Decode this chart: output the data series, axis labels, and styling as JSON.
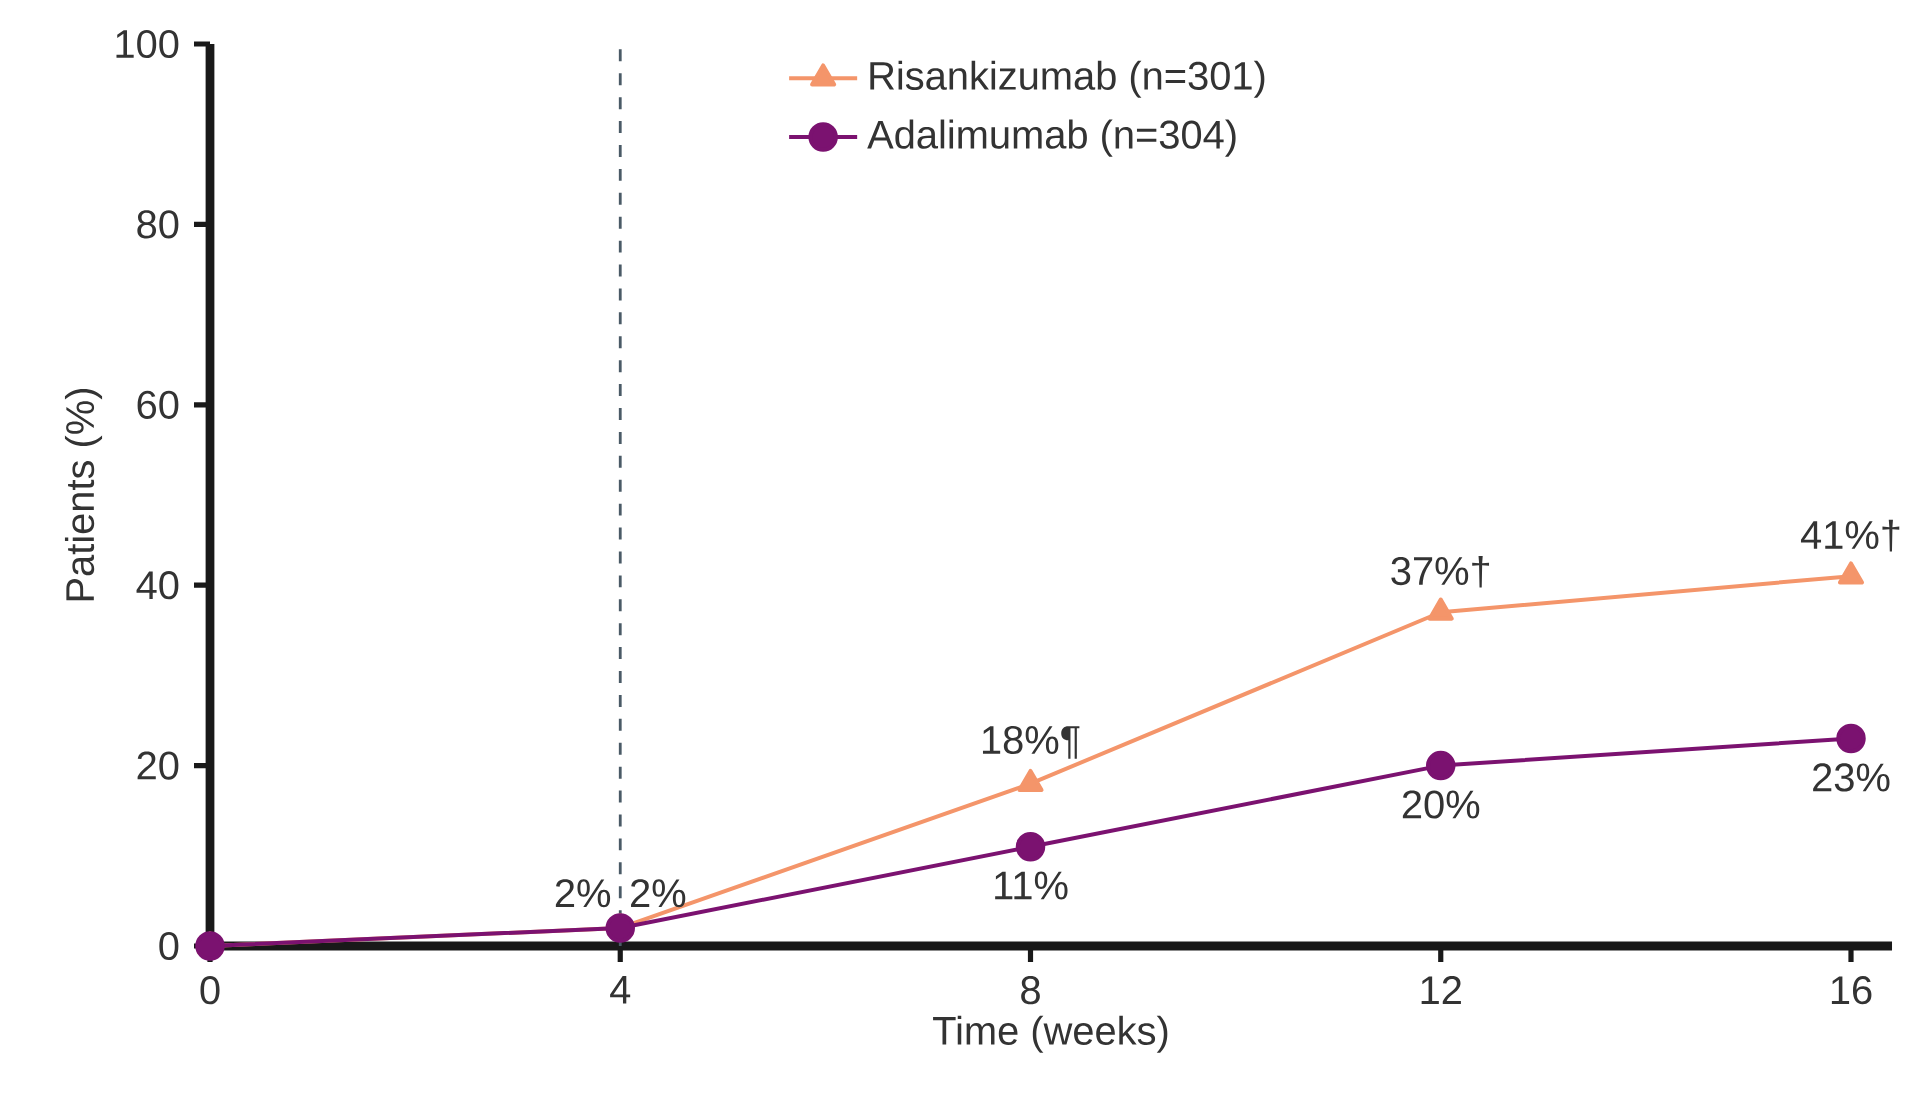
{
  "chart_data": {
    "type": "line",
    "xlabel": "Time (weeks)",
    "ylabel": "Patients (%)",
    "x": [
      0,
      4,
      8,
      12,
      16
    ],
    "xlim": [
      0,
      16.4
    ],
    "xticks": [
      0,
      4,
      8,
      12,
      16
    ],
    "ylim": [
      0,
      100
    ],
    "yticks": [
      0,
      20,
      40,
      60,
      80,
      100
    ],
    "series": [
      {
        "name": "Risankizumab (n=301)",
        "color": "#f4956a",
        "marker": "triangle",
        "values": [
          0,
          2,
          18,
          37,
          41
        ],
        "value_labels": [
          null,
          "2%",
          "18%¶",
          "37%†",
          "41%†"
        ]
      },
      {
        "name": "Adalimumab (n=304)",
        "color": "#7b1270",
        "marker": "circle",
        "values": [
          0,
          2,
          11,
          20,
          23
        ],
        "value_labels": [
          null,
          "2%",
          "11%",
          "20%",
          "23%"
        ]
      }
    ],
    "ref_lines": [
      {
        "axis": "x",
        "value": 4,
        "color": "#4a5a66",
        "line_style": "dashed"
      }
    ],
    "grid": false,
    "legend": "top",
    "line_style": "solid"
  }
}
